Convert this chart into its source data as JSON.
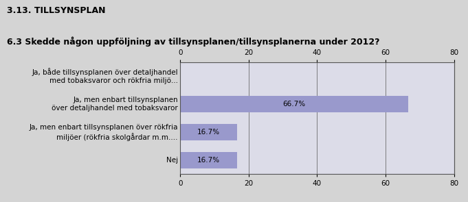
{
  "section_title": "3.13. TILLSYNSPLAN",
  "question": "6.3 Skedde någon uppföljning av tillsynsplanen/tillsynsplanerna under 2012?",
  "categories": [
    "Ja, både tillsynsplanen över detaljhandel\nmed tobaksvaror och rökfria miljö...",
    "Ja, men enbart tillsynsplanen\növer detaljhandel med tobaksvaror",
    "Ja, men enbart tillsynsplanen över rökfria\nmiljöer (rökfria skolgårdar m.m....",
    "Nej"
  ],
  "values": [
    0.0,
    66.7,
    16.7,
    16.7
  ],
  "bar_color": "#9999cc",
  "bar_color_zero": "#b8b8d0",
  "background_color": "#d4d4d4",
  "plot_bg_color": "#dcdce8",
  "xlim": [
    0,
    80
  ],
  "xticks": [
    0,
    20,
    40,
    60,
    80
  ],
  "label_fontsize": 7.5,
  "question_fontsize": 9,
  "section_fontsize": 9
}
